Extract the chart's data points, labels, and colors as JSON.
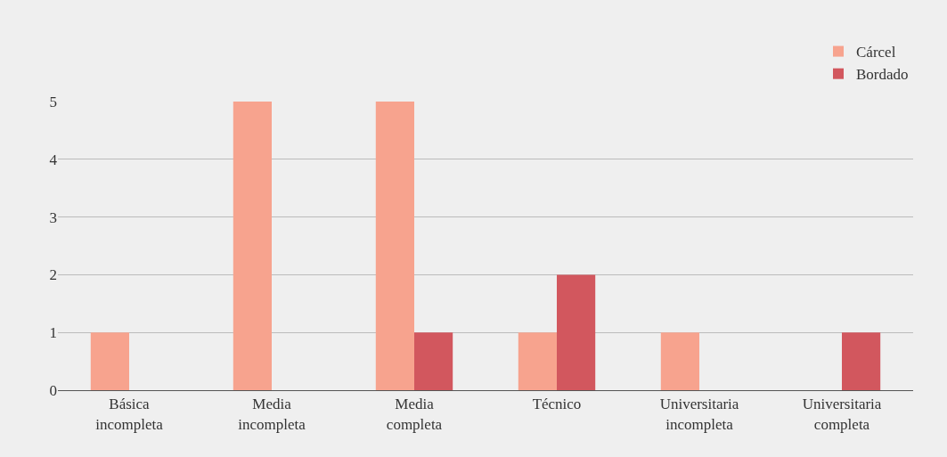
{
  "chart_data": {
    "type": "bar",
    "categories": [
      "Básica incompleta",
      "Media incompleta",
      "Media completa",
      "Técnico",
      "Universitaria incompleta",
      "Universitaria completa"
    ],
    "series": [
      {
        "name": "Cárcel",
        "color": "#f7a38e",
        "values": [
          1,
          5,
          5,
          1,
          1,
          0
        ]
      },
      {
        "name": "Bordado",
        "color": "#d2575e",
        "values": [
          0,
          0,
          1,
          2,
          0,
          1
        ]
      }
    ],
    "ylim": [
      0,
      5
    ],
    "yticks": [
      0,
      1,
      2,
      3,
      4,
      5
    ],
    "grid": "y",
    "legend": "top right"
  }
}
